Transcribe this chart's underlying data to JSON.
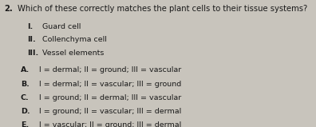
{
  "question_number": "2.",
  "question_text": "Which of these correctly matches the plant cells to their tissue systems?",
  "items": [
    [
      "I.",
      "Guard cell"
    ],
    [
      "II.",
      "Collenchyma cell"
    ],
    [
      "III.",
      "Vessel elements"
    ]
  ],
  "options": [
    [
      "A.",
      " I = dermal; II = ground; III = vascular"
    ],
    [
      "B.",
      " I = dermal; II = vascular; III = ground"
    ],
    [
      "C.",
      " I = ground; II = dermal; III = vascular"
    ],
    [
      "D.",
      " I = ground; II = vascular; III = dermal"
    ],
    [
      "E.",
      " I = vascular; II = ground; III = dermal"
    ]
  ],
  "bg_color": "#c8c4bc",
  "text_color": "#1a1a1a",
  "font_size_question": 7.2,
  "font_size_items": 6.8,
  "font_size_options": 6.8
}
